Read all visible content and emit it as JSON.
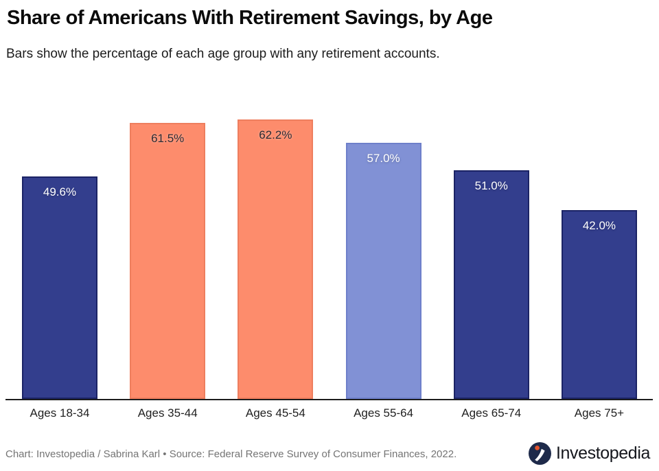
{
  "header": {
    "title": "Share of Americans With Retirement Savings, by Age",
    "subtitle": "Bars show the percentage of each age group with any retirement accounts."
  },
  "chart_data": {
    "type": "bar",
    "title": "Share of Americans With Retirement Savings, by Age",
    "subtitle": "Bars show the percentage of each age group with any retirement accounts.",
    "categories": [
      "Ages 18-34",
      "Ages 35-44",
      "Ages 45-54",
      "Ages 55-64",
      "Ages 65-74",
      "Ages 75+"
    ],
    "values": [
      49.6,
      61.5,
      62.2,
      57.0,
      51.0,
      42.0
    ],
    "value_labels": [
      "49.6%",
      "61.5%",
      "62.2%",
      "57.0%",
      "51.0%",
      "42.0%"
    ],
    "bar_colors": [
      "#333e8d",
      "#fd8c6c",
      "#fd8c6c",
      "#8191d5",
      "#333e8d",
      "#333e8d"
    ],
    "bar_border_colors": [
      "#1b2365",
      "#ee7e5e",
      "#ee7e5e",
      "#6e7fca",
      "#1b2365",
      "#1b2365"
    ],
    "value_label_colors": [
      "#ffffff",
      "#2b2b33",
      "#2b2b33",
      "#ffffff",
      "#ffffff",
      "#ffffff"
    ],
    "xlabel": "",
    "ylabel": "",
    "ylim": [
      0,
      67
    ],
    "grid": false,
    "legend": null,
    "axis_line_color": "#1d1d1d"
  },
  "footer": {
    "credit": "Chart: Investopedia / Sabrina Karl • Source: Federal Reserve Survey of Consumer Finances, 2022.",
    "logo": {
      "text": "Investopedia",
      "icon": "investopedia-logo-icon",
      "circle_color": "#1e2a4a",
      "swoosh_color": "#ffffff",
      "dot_color": "#e2532d"
    }
  }
}
